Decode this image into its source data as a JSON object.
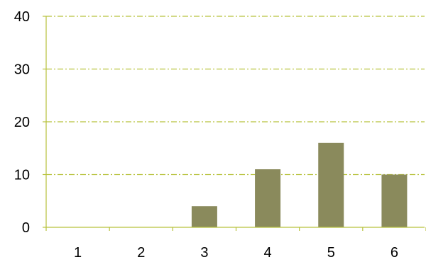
{
  "chart_data": {
    "type": "bar",
    "categories": [
      "1",
      "2",
      "3",
      "4",
      "5",
      "6"
    ],
    "values": [
      0,
      0,
      4,
      11,
      16,
      10
    ],
    "title": "",
    "xlabel": "",
    "ylabel": "",
    "ylim": [
      0,
      40
    ],
    "yticks": [
      0,
      10,
      20,
      30,
      40
    ],
    "grid": true,
    "legend": "none",
    "colors": {
      "bar": "#8a8a5c",
      "axis": "#b8c23c",
      "grid": "#b8c23c",
      "text": "#000000"
    }
  }
}
